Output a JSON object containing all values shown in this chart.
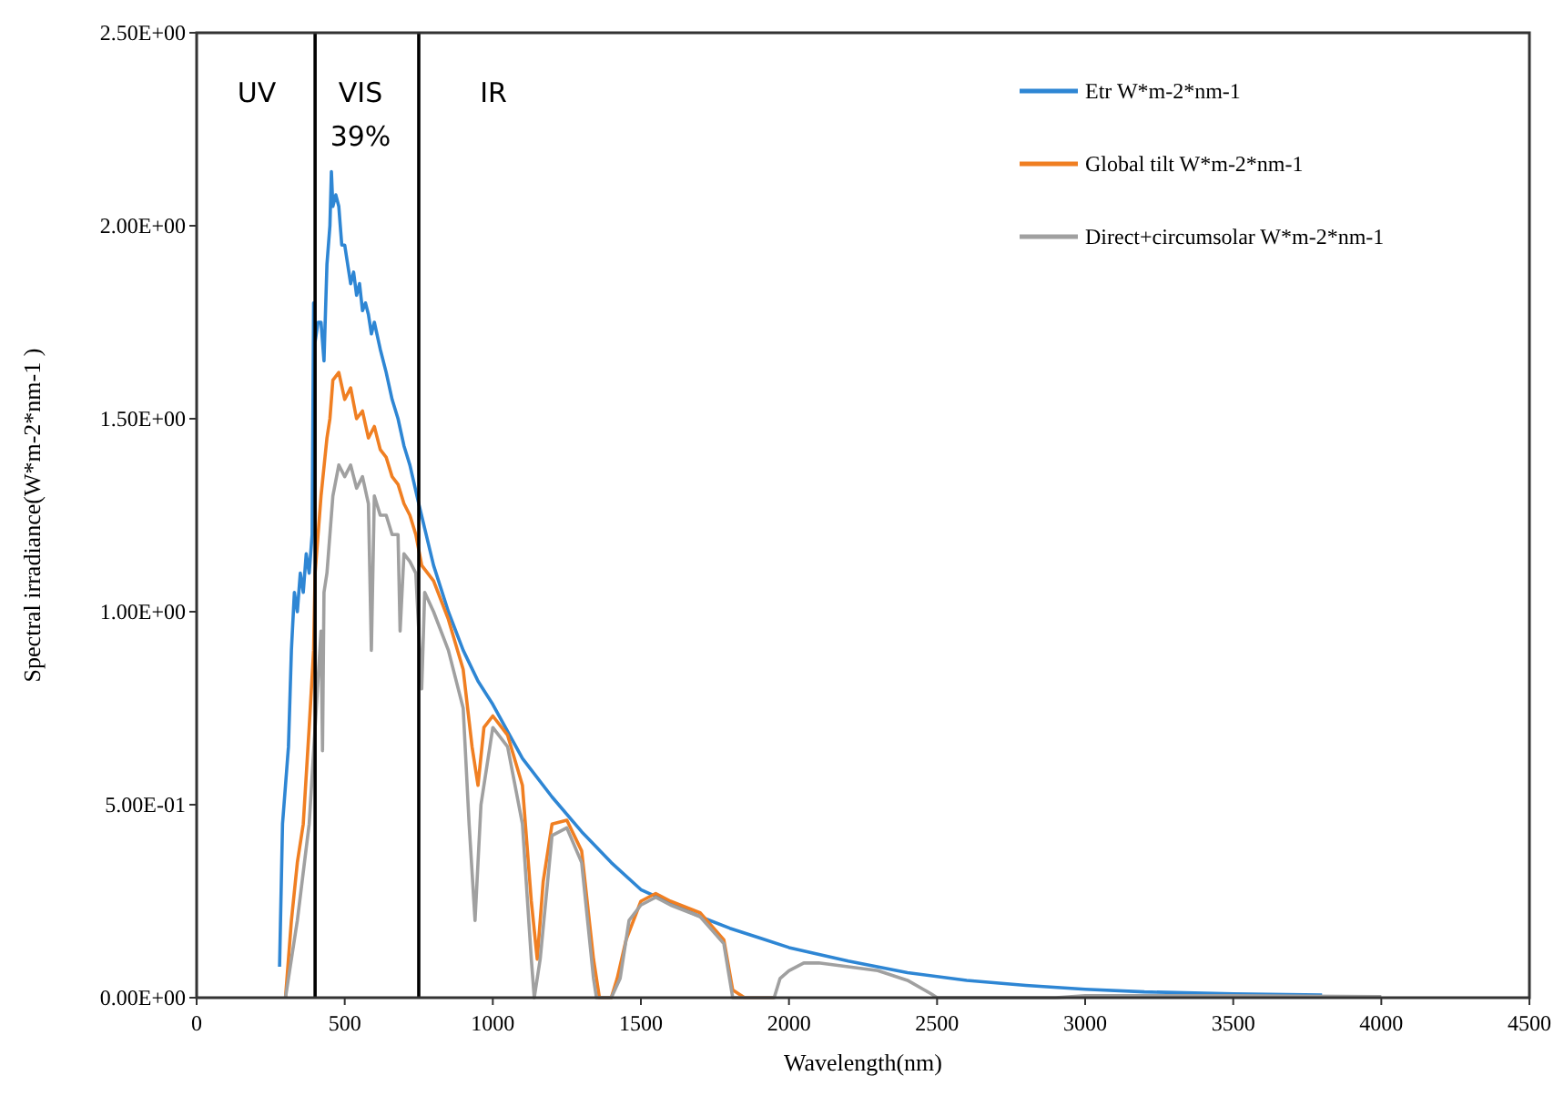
{
  "chart_data": {
    "type": "line",
    "xlabel": "Wavelength(nm)",
    "ylabel": "Spectral irradiance(W*m-2*nm-1 )",
    "xlim": [
      0,
      4500
    ],
    "xticks": [
      0,
      500,
      1000,
      1500,
      2000,
      2500,
      3000,
      3500,
      4000,
      4500
    ],
    "ylim": [
      0,
      2.5
    ],
    "yticks": [
      {
        "value": 0,
        "label": "0.00E+00"
      },
      {
        "value": 0.5,
        "label": "5.00E-01"
      },
      {
        "value": 1,
        "label": "1.00E+00"
      },
      {
        "value": 1.5,
        "label": "1.50E+00"
      },
      {
        "value": 2,
        "label": "2.00E+00"
      },
      {
        "value": 2.5,
        "label": "2.50E+00"
      }
    ],
    "grid": false,
    "legend": "top right",
    "marker": "none",
    "line_style": "solid",
    "ref_lines": [
      {
        "axis": "x",
        "value": 400,
        "color": "#000000"
      },
      {
        "axis": "x",
        "value": 750,
        "color": "#000000"
      }
    ],
    "annotations": [
      "UV",
      "VIS",
      "39%",
      "IR"
    ],
    "series": [
      {
        "name": "Etr W*m-2*nm-1",
        "color": "#2e86d4",
        "x": [
          280,
          290,
          300,
          310,
          320,
          330,
          340,
          350,
          360,
          370,
          380,
          390,
          395,
          400,
          410,
          420,
          430,
          440,
          450,
          455,
          460,
          470,
          480,
          490,
          500,
          510,
          520,
          530,
          540,
          550,
          560,
          570,
          580,
          590,
          600,
          620,
          640,
          660,
          680,
          700,
          720,
          750,
          800,
          850,
          900,
          950,
          1000,
          1100,
          1200,
          1300,
          1400,
          1500,
          1600,
          1700,
          1800,
          1900,
          2000,
          2200,
          2400,
          2600,
          2800,
          3000,
          3200,
          3500,
          3800
        ],
        "values": [
          0.08,
          0.45,
          0.55,
          0.65,
          0.9,
          1.05,
          1.0,
          1.1,
          1.05,
          1.15,
          1.1,
          1.2,
          1.8,
          1.7,
          1.75,
          1.75,
          1.65,
          1.9,
          2.0,
          2.14,
          2.05,
          2.08,
          2.05,
          1.95,
          1.95,
          1.9,
          1.85,
          1.88,
          1.82,
          1.85,
          1.78,
          1.8,
          1.77,
          1.72,
          1.75,
          1.68,
          1.62,
          1.55,
          1.5,
          1.43,
          1.38,
          1.28,
          1.12,
          1.0,
          0.9,
          0.82,
          0.76,
          0.62,
          0.52,
          0.43,
          0.35,
          0.28,
          0.245,
          0.21,
          0.18,
          0.155,
          0.13,
          0.095,
          0.065,
          0.045,
          0.032,
          0.022,
          0.015,
          0.01,
          0.007
        ]
      },
      {
        "name": "Global tilt W*m-2*nm-1",
        "color": "#f07f22",
        "x": [
          300,
          320,
          340,
          360,
          380,
          395,
          400,
          420,
          440,
          450,
          460,
          480,
          500,
          520,
          540,
          560,
          580,
          600,
          620,
          640,
          660,
          680,
          700,
          720,
          740,
          760,
          800,
          850,
          900,
          930,
          950,
          970,
          1000,
          1050,
          1100,
          1130,
          1150,
          1170,
          1200,
          1250,
          1300,
          1340,
          1360,
          1400,
          1420,
          1450,
          1500,
          1550,
          1600,
          1700,
          1780,
          1810,
          1850,
          1950
        ],
        "values": [
          0,
          0.2,
          0.35,
          0.45,
          0.7,
          0.9,
          1.1,
          1.3,
          1.45,
          1.5,
          1.6,
          1.62,
          1.55,
          1.58,
          1.5,
          1.52,
          1.45,
          1.48,
          1.42,
          1.4,
          1.35,
          1.33,
          1.28,
          1.25,
          1.2,
          1.12,
          1.08,
          0.98,
          0.85,
          0.65,
          0.55,
          0.7,
          0.73,
          0.68,
          0.55,
          0.25,
          0.1,
          0.3,
          0.45,
          0.46,
          0.38,
          0.1,
          0,
          0,
          0.05,
          0.15,
          0.25,
          0.27,
          0.25,
          0.22,
          0.15,
          0.02,
          0,
          0
        ]
      },
      {
        "name": "Direct+circumsolar W*m-2*nm-1",
        "color": "#a0a0a0",
        "x": [
          300,
          340,
          380,
          400,
          420,
          425,
          430,
          440,
          460,
          480,
          500,
          520,
          540,
          560,
          580,
          590,
          600,
          620,
          640,
          660,
          680,
          687,
          700,
          720,
          740,
          760,
          770,
          800,
          850,
          900,
          920,
          940,
          960,
          1000,
          1050,
          1100,
          1130,
          1140,
          1160,
          1200,
          1250,
          1300,
          1340,
          1350,
          1400,
          1430,
          1460,
          1500,
          1550,
          1600,
          1700,
          1780,
          1810,
          1850,
          1950,
          1970,
          2000,
          2050,
          2100,
          2200,
          2300,
          2400,
          2480,
          2500,
          2900,
          3000,
          3500,
          4000
        ],
        "values": [
          0,
          0.2,
          0.45,
          0.7,
          0.95,
          0.64,
          1.05,
          1.1,
          1.3,
          1.38,
          1.35,
          1.38,
          1.32,
          1.35,
          1.28,
          0.9,
          1.3,
          1.25,
          1.25,
          1.2,
          1.2,
          0.95,
          1.15,
          1.13,
          1.1,
          0.8,
          1.05,
          1.0,
          0.9,
          0.75,
          0.45,
          0.2,
          0.5,
          0.7,
          0.65,
          0.45,
          0.1,
          0,
          0.1,
          0.42,
          0.44,
          0.35,
          0.05,
          0,
          0,
          0.05,
          0.2,
          0.24,
          0.26,
          0.24,
          0.21,
          0.14,
          0,
          0,
          0,
          0.05,
          0.07,
          0.09,
          0.09,
          0.08,
          0.07,
          0.045,
          0.01,
          0,
          0,
          0.005,
          0.005,
          0.003
        ]
      }
    ]
  }
}
